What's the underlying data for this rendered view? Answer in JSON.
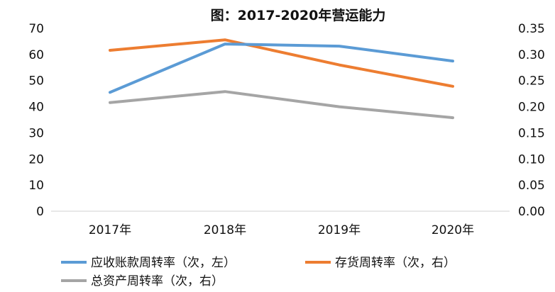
{
  "chart_data": {
    "type": "line",
    "title": "图：2017-2020年营运能力",
    "categories": [
      "2017年",
      "2018年",
      "2019年",
      "2020年"
    ],
    "y_left": {
      "ylim": [
        0,
        70
      ],
      "ticks": [
        "0",
        "10",
        "20",
        "30",
        "40",
        "50",
        "60",
        "70"
      ]
    },
    "y_right": {
      "ylim": [
        0,
        0.35
      ],
      "ticks": [
        "0.00",
        "0.05",
        "0.10",
        "0.15",
        "0.20",
        "0.25",
        "0.30",
        "0.35"
      ]
    },
    "series": [
      {
        "name": "应收账款周转率（次，左）",
        "axis": "left",
        "color": "#5B9BD5",
        "values": [
          45.5,
          64.0,
          63.2,
          57.5
        ]
      },
      {
        "name": "存货周转率（次，右）",
        "axis": "right",
        "color": "#ED7D31",
        "values": [
          0.308,
          0.328,
          0.28,
          0.239
        ]
      },
      {
        "name": "总资产周转率（次，右）",
        "axis": "right",
        "color": "#A5A5A5",
        "values": [
          0.208,
          0.229,
          0.2,
          0.179
        ]
      }
    ],
    "grid": false,
    "legend_position": "bottom"
  }
}
